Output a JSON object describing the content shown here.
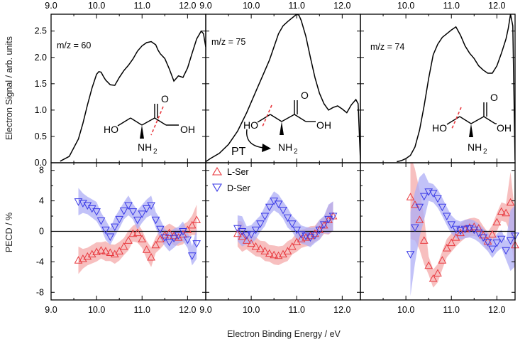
{
  "colors": {
    "l_ser": "#e8393f",
    "d_ser": "#3a3ae6",
    "l_ser_band": "#f4a9aa",
    "d_ser_band": "#aeaef6",
    "signal": "#000000"
  },
  "text": {
    "ylabel_top": "Electron Signal / arb. units",
    "ylabel_bottom": "PECD / %",
    "xlabel": "Electron Binding Energy / eV",
    "mol_ho": "HO",
    "mol_oh": "OH",
    "mol_o": "O",
    "mol_nh": "NH",
    "mol_sub2": "2",
    "pt_label": "PT"
  },
  "chart_data": {
    "type": "line",
    "x_ticks": [
      "9.0",
      "10.0",
      "11.0",
      "12.0"
    ],
    "x_ticks_panel3": [
      "10.0",
      "11.0",
      "12.0"
    ],
    "top_y_ticks": [
      "0.0",
      "0.5",
      "1.0",
      "1.5",
      "2.0",
      "2.5"
    ],
    "bottom_y_ticks": [
      "-8",
      "-4",
      "0",
      "4",
      "8"
    ],
    "top_ylim": [
      0,
      2.82
    ],
    "bottom_ylim": [
      -9,
      9
    ],
    "legend": [
      {
        "name": "L-Ser",
        "marker": "triangle-up"
      },
      {
        "name": "D-Ser",
        "marker": "triangle-down"
      }
    ],
    "panels": [
      {
        "label": "m/z = 60",
        "xlim": [
          9.0,
          12.4
        ],
        "signal": {
          "x": [
            9.2,
            9.4,
            9.6,
            9.7,
            9.8,
            9.9,
            10.0,
            10.05,
            10.1,
            10.15,
            10.2,
            10.3,
            10.4,
            10.5,
            10.6,
            10.7,
            10.8,
            10.9,
            11.0,
            11.1,
            11.2,
            11.3,
            11.35,
            11.4,
            11.5,
            11.6,
            11.7,
            11.8,
            11.9,
            12.0,
            12.1,
            12.2,
            12.3,
            12.35,
            12.4
          ],
          "values": [
            0.03,
            0.12,
            0.45,
            0.75,
            1.1,
            1.42,
            1.68,
            1.73,
            1.72,
            1.64,
            1.57,
            1.48,
            1.47,
            1.62,
            1.75,
            1.85,
            1.97,
            2.12,
            2.22,
            2.28,
            2.3,
            2.24,
            2.14,
            2.07,
            1.98,
            1.78,
            1.55,
            1.65,
            1.62,
            1.8,
            2.08,
            2.35,
            2.5,
            2.45,
            2.2
          ]
        },
        "l_ser": {
          "x": [
            9.6,
            9.7,
            9.8,
            9.9,
            10.0,
            10.1,
            10.2,
            10.3,
            10.4,
            10.5,
            10.6,
            10.7,
            10.8,
            10.9,
            11.0,
            11.1,
            11.2,
            11.3,
            11.4,
            11.5,
            11.6,
            11.7,
            11.8,
            11.9,
            12.0,
            12.1,
            12.2
          ],
          "values": [
            -3.8,
            -3.6,
            -3.3,
            -3.0,
            -2.7,
            -2.5,
            -2.6,
            -2.8,
            -3.0,
            -2.6,
            -2.0,
            -1.2,
            -0.3,
            -0.2,
            -1.0,
            -2.4,
            -3.4,
            -1.8,
            -1.0,
            -0.5,
            -0.2,
            -0.6,
            -0.8,
            -0.4,
            0.2,
            0.8,
            1.5
          ]
        },
        "d_ser": {
          "x": [
            9.6,
            9.7,
            9.8,
            9.9,
            10.0,
            10.1,
            10.2,
            10.3,
            10.4,
            10.5,
            10.6,
            10.7,
            10.8,
            10.9,
            11.0,
            11.1,
            11.2,
            11.3,
            11.4,
            11.5,
            11.6,
            11.7,
            11.8,
            11.9,
            12.0,
            12.1,
            12.2
          ],
          "values": [
            3.9,
            3.7,
            3.4,
            3.0,
            2.6,
            1.4,
            0.2,
            -0.7,
            0.6,
            1.6,
            2.7,
            3.4,
            2.6,
            1.5,
            2.3,
            3.0,
            3.4,
            1.5,
            0.3,
            -0.8,
            -1.4,
            -0.9,
            -0.5,
            0.0,
            -1.1,
            -3.2,
            -1.6
          ]
        }
      },
      {
        "label": "m/z = 75",
        "xlim": [
          9.0,
          12.4
        ],
        "signal": {
          "x": [
            9.0,
            9.1,
            9.3,
            9.5,
            9.7,
            9.9,
            10.1,
            10.3,
            10.4,
            10.5,
            10.6,
            10.7,
            10.8,
            10.9,
            11.0,
            11.05,
            11.1,
            11.2,
            11.3,
            11.4,
            11.5,
            11.6,
            11.7,
            11.8,
            11.9,
            12.0,
            12.1,
            12.2,
            12.3,
            12.35,
            12.4
          ],
          "values": [
            0.02,
            0.08,
            0.18,
            0.35,
            0.6,
            0.95,
            1.35,
            1.75,
            1.95,
            2.2,
            2.45,
            2.6,
            2.68,
            2.75,
            2.82,
            2.8,
            2.7,
            2.4,
            2.0,
            1.62,
            1.32,
            1.12,
            1.0,
            1.05,
            1.08,
            1.02,
            0.95,
            1.1,
            1.2,
            1.12,
            0.05
          ]
        },
        "l_ser": {
          "x": [
            9.7,
            9.8,
            9.9,
            10.0,
            10.1,
            10.2,
            10.3,
            10.4,
            10.5,
            10.6,
            10.7,
            10.8,
            10.9,
            11.0,
            11.1,
            11.2,
            11.3,
            11.4,
            11.5,
            11.6,
            11.7,
            11.8
          ],
          "values": [
            -0.3,
            -0.7,
            -1.2,
            -1.6,
            -2.0,
            -2.3,
            -2.6,
            -2.9,
            -3.1,
            -3.2,
            -3.0,
            -2.6,
            -2.0,
            -1.4,
            -1.0,
            -0.8,
            -0.6,
            -0.3,
            0.2,
            0.8,
            1.5,
            2.0
          ]
        },
        "d_ser": {
          "x": [
            9.7,
            9.8,
            9.9,
            10.0,
            10.1,
            10.2,
            10.3,
            10.4,
            10.5,
            10.6,
            10.7,
            10.8,
            10.9,
            11.0,
            11.1,
            11.2,
            11.3,
            11.4,
            11.5,
            11.6,
            11.7,
            11.8
          ],
          "values": [
            0.4,
            0.0,
            -0.5,
            -0.4,
            0.2,
            1.0,
            2.0,
            3.2,
            4.0,
            3.6,
            2.8,
            1.8,
            1.0,
            0.2,
            -0.4,
            -0.6,
            -0.8,
            -0.5,
            0.2,
            0.9,
            1.6,
            2.0
          ]
        }
      },
      {
        "label": "m/z = 74",
        "xlim": [
          9.0,
          12.4
        ],
        "signal": {
          "x": [
            9.8,
            9.9,
            10.0,
            10.1,
            10.2,
            10.3,
            10.4,
            10.5,
            10.6,
            10.7,
            10.8,
            10.9,
            11.0,
            11.1,
            11.2,
            11.3,
            11.4,
            11.5,
            11.6,
            11.7,
            11.8,
            11.9,
            12.0,
            12.1,
            12.2,
            12.25,
            12.3,
            12.35,
            12.4
          ],
          "values": [
            0.02,
            0.04,
            0.08,
            0.14,
            0.3,
            0.62,
            1.08,
            1.6,
            2.05,
            2.25,
            2.38,
            2.45,
            2.52,
            2.58,
            2.42,
            2.22,
            2.08,
            1.98,
            1.84,
            1.76,
            1.7,
            1.7,
            1.84,
            2.08,
            2.35,
            2.55,
            2.82,
            2.6,
            0.05
          ]
        },
        "l_ser": {
          "x": [
            10.1,
            10.2,
            10.3,
            10.4,
            10.5,
            10.6,
            10.7,
            10.8,
            10.9,
            11.0,
            11.1,
            11.2,
            11.3,
            11.4,
            11.5,
            11.6,
            11.7,
            11.8,
            11.9,
            12.0,
            12.1,
            12.2,
            12.3,
            12.4
          ],
          "values": [
            4.5,
            3.5,
            1.5,
            -1.2,
            -4.5,
            -6.2,
            -5.5,
            -3.8,
            -2.2,
            -1.5,
            -0.8,
            -0.2,
            0.3,
            0.5,
            0.6,
            0.4,
            -0.5,
            -1.3,
            -0.4,
            1.2,
            2.6,
            2.4,
            3.8,
            -1.8
          ]
        },
        "d_ser": {
          "x": [
            10.1,
            10.2,
            10.3,
            10.4,
            10.5,
            10.6,
            10.7,
            10.8,
            10.9,
            11.0,
            11.1,
            11.2,
            11.3,
            11.4,
            11.5,
            11.6,
            11.7,
            11.8,
            11.9,
            12.0,
            12.1,
            12.2,
            12.3,
            12.4
          ],
          "values": [
            -3.0,
            0.5,
            3.2,
            4.6,
            5.2,
            5.0,
            4.3,
            3.2,
            2.0,
            0.9,
            0.3,
            0.1,
            0.3,
            0.4,
            0.2,
            -0.2,
            -0.8,
            -1.4,
            -2.3,
            -1.5,
            -1.0,
            -2.5,
            -1.2,
            -0.6
          ]
        }
      }
    ]
  }
}
